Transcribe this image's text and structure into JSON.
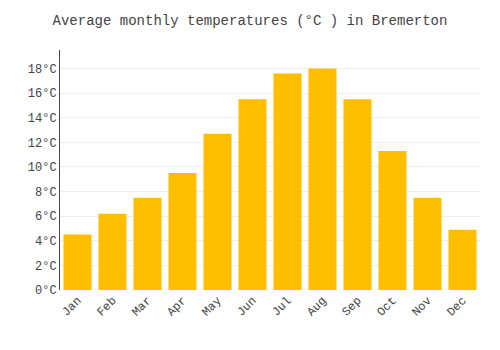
{
  "chart_data": {
    "type": "bar",
    "title": "Average monthly temperatures (°C ) in Bremerton",
    "categories": [
      "Jan",
      "Feb",
      "Mar",
      "Apr",
      "May",
      "Jun",
      "Jul",
      "Aug",
      "Sep",
      "Oct",
      "Nov",
      "Dec"
    ],
    "values": [
      4.5,
      6.2,
      7.5,
      9.5,
      12.7,
      15.5,
      17.6,
      18.0,
      15.5,
      11.3,
      7.5,
      4.9
    ],
    "color": "#FFBE00",
    "ylim": [
      0,
      19.5
    ],
    "yticks": [
      {
        "value": 0,
        "label": "0°C"
      },
      {
        "value": 2,
        "label": "2°C"
      },
      {
        "value": 4,
        "label": "4°C"
      },
      {
        "value": 6,
        "label": "6°C"
      },
      {
        "value": 8,
        "label": "8°C"
      },
      {
        "value": 10,
        "label": "10°C"
      },
      {
        "value": 12,
        "label": "12°C"
      },
      {
        "value": 14,
        "label": "14°C"
      },
      {
        "value": 16,
        "label": "16°C"
      },
      {
        "value": 18,
        "label": "18°C"
      }
    ],
    "grid": true
  }
}
